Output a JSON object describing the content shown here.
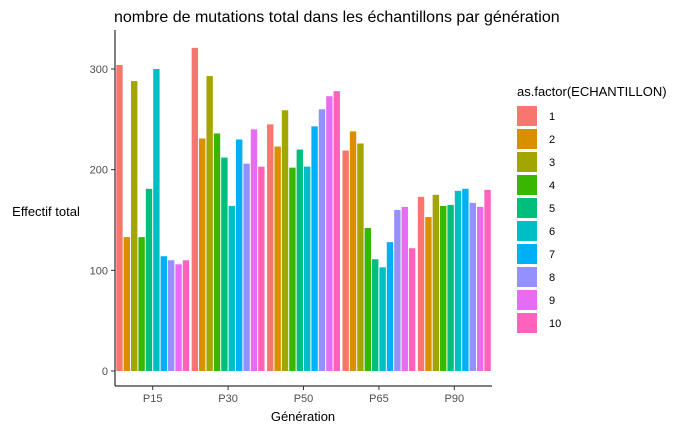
{
  "chart_data": {
    "type": "bar",
    "title": "nombre de mutations total dans les échantillons par génération",
    "xlabel": "Génération",
    "ylabel": "Effectif total",
    "categories": [
      "P15",
      "P30",
      "P50",
      "P65",
      "P90"
    ],
    "ylim": [
      0,
      335
    ],
    "yticks": [
      "0",
      "100",
      "200",
      "300"
    ],
    "grid": false,
    "legend": {
      "title": "as.factor(ECHANTILLON)",
      "placement": "right",
      "labels": [
        "1",
        "2",
        "3",
        "4",
        "5",
        "6",
        "7",
        "8",
        "9",
        "10"
      ],
      "colors": [
        "#F8766D",
        "#D89000",
        "#A3A500",
        "#39B600",
        "#00BF7D",
        "#00BFC4",
        "#00B0F6",
        "#9590FF",
        "#E76BF3",
        "#FF62BC"
      ]
    },
    "series": [
      {
        "name": "1",
        "values": [
          304,
          321,
          245,
          219,
          173
        ]
      },
      {
        "name": "2",
        "values": [
          133,
          231,
          223,
          238,
          153
        ]
      },
      {
        "name": "3",
        "values": [
          288,
          293,
          259,
          226,
          175
        ]
      },
      {
        "name": "4",
        "values": [
          133,
          236,
          202,
          142,
          164
        ]
      },
      {
        "name": "5",
        "values": [
          181,
          212,
          220,
          111,
          165
        ]
      },
      {
        "name": "6",
        "values": [
          300,
          164,
          203,
          103,
          179
        ]
      },
      {
        "name": "7",
        "values": [
          114,
          230,
          243,
          128,
          181
        ]
      },
      {
        "name": "8",
        "values": [
          110,
          206,
          260,
          160,
          167
        ]
      },
      {
        "name": "9",
        "values": [
          106,
          240,
          273,
          163,
          163
        ]
      },
      {
        "name": "10",
        "values": [
          110,
          203,
          278,
          122,
          180
        ]
      }
    ]
  }
}
